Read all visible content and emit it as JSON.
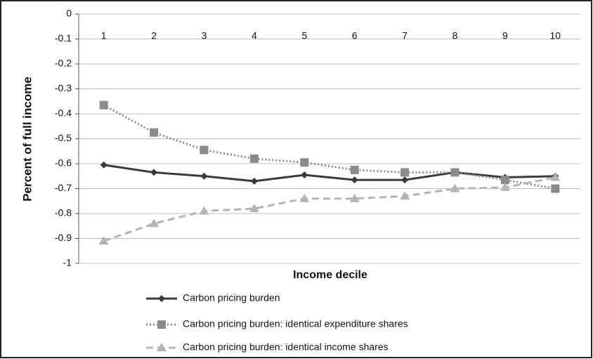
{
  "chart_data": {
    "type": "line",
    "x_label": "Income decile",
    "y_label": "Percent of full income",
    "categories": [
      "1",
      "2",
      "3",
      "4",
      "5",
      "6",
      "7",
      "8",
      "9",
      "10"
    ],
    "ylim": [
      -1,
      0
    ],
    "yticks": [
      0,
      -0.1,
      -0.2,
      -0.3,
      -0.4,
      -0.5,
      -0.6,
      -0.7,
      -0.8,
      -0.9,
      -1
    ],
    "grid": true,
    "legend": "bottom",
    "series": [
      {
        "name": "Carbon pricing burden",
        "color": "#3a3a3a",
        "line_style": "solid",
        "marker": "diamond",
        "values": [
          -0.605,
          -0.635,
          -0.65,
          -0.67,
          -0.645,
          -0.665,
          -0.665,
          -0.635,
          -0.655,
          -0.65
        ]
      },
      {
        "name": "Carbon pricing burden: identical expenditure shares",
        "color": "#8a8a8a",
        "line_style": "dotted",
        "marker": "square",
        "values": [
          -0.365,
          -0.475,
          -0.545,
          -0.58,
          -0.595,
          -0.625,
          -0.635,
          -0.635,
          -0.665,
          -0.7
        ]
      },
      {
        "name": "Carbon pricing burden: identical income shares",
        "color": "#b4b4b4",
        "line_style": "dashed",
        "marker": "triangle",
        "values": [
          -0.91,
          -0.84,
          -0.79,
          -0.78,
          -0.74,
          -0.74,
          -0.73,
          -0.7,
          -0.695,
          -0.655
        ]
      }
    ]
  }
}
